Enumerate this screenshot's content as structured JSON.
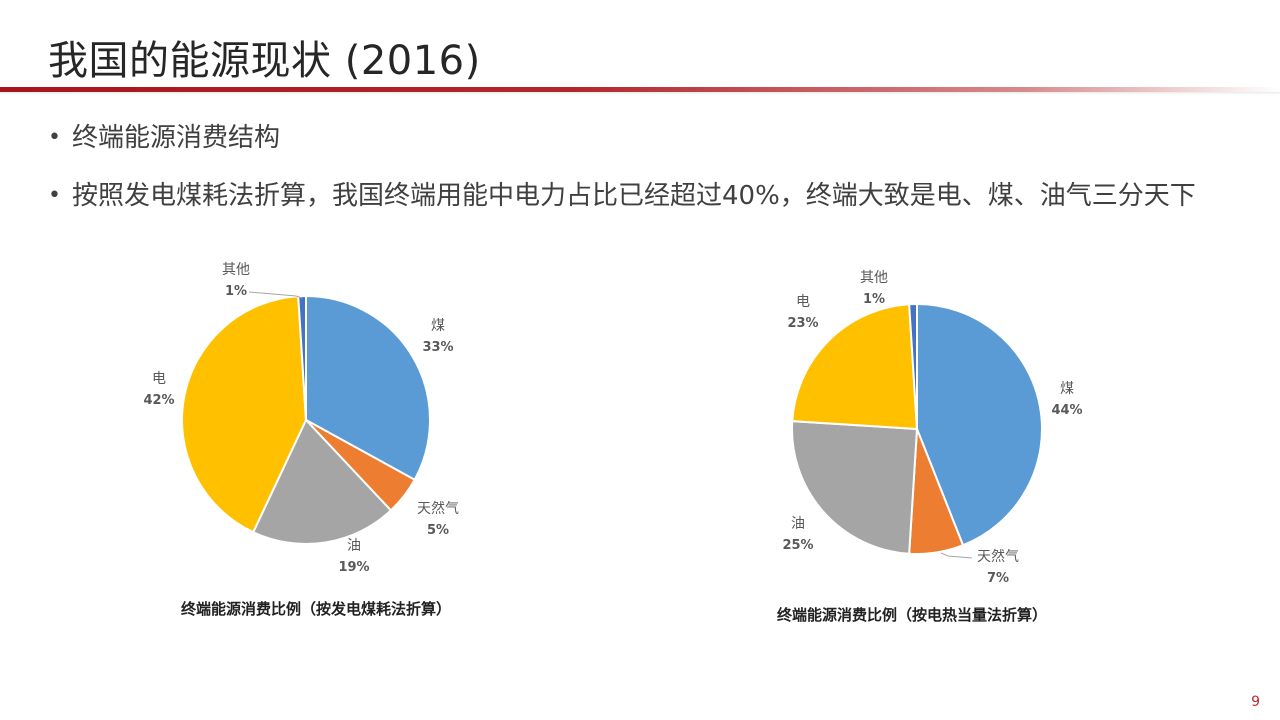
{
  "page": {
    "title": "我国的能源现状 (2016)",
    "bullets": [
      "终端能源消费结构",
      "按照发电煤耗法折算，我国终端用能中电力占比已经超过40%，终端大致是电、煤、油气三分天下"
    ],
    "page_number": "9"
  },
  "chart_data": [
    {
      "type": "pie",
      "title": "终端能源消费比例（按发电煤耗法折算）",
      "slices": [
        {
          "label": "煤",
          "value": 33,
          "display": "33%",
          "color": "#5b9bd5"
        },
        {
          "label": "天然气",
          "value": 5,
          "display": "5%",
          "color": "#ed7d31"
        },
        {
          "label": "油",
          "value": 19,
          "display": "19%",
          "color": "#a5a5a5"
        },
        {
          "label": "电",
          "value": 42,
          "display": "42%",
          "color": "#ffc000"
        },
        {
          "label": "其他",
          "value": 1,
          "display": "1%",
          "color": "#4472c4"
        }
      ]
    },
    {
      "type": "pie",
      "title": "终端能源消费比例（按电热当量法折算）",
      "slices": [
        {
          "label": "煤",
          "value": 44,
          "display": "44%",
          "color": "#5b9bd5"
        },
        {
          "label": "天然气",
          "value": 7,
          "display": "7%",
          "color": "#ed7d31"
        },
        {
          "label": "油",
          "value": 25,
          "display": "25%",
          "color": "#a5a5a5"
        },
        {
          "label": "电",
          "value": 23,
          "display": "23%",
          "color": "#ffc000"
        },
        {
          "label": "其他",
          "value": 1,
          "display": "1%",
          "color": "#4472c4"
        }
      ]
    }
  ]
}
